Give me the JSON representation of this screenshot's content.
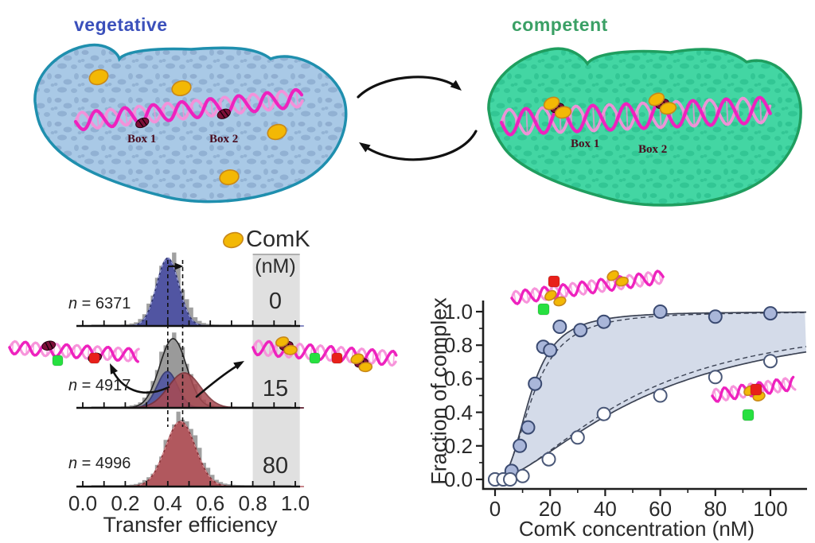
{
  "figure": {
    "top": {
      "left_cell": {
        "label": "vegetative",
        "label_color": "#3b50bb",
        "fill": "#a9c9e6",
        "speckle": "#7e9dc2",
        "border": "#1f8fae",
        "box1": "Box 1",
        "box2": "Box 2"
      },
      "right_cell": {
        "label": "competent",
        "label_color": "#3aa065",
        "fill": "#43d6a3",
        "speckle": "#21b585",
        "border": "#1f9e5f",
        "box1": "Box 1",
        "box2": "Box 2"
      },
      "comk_fill": "#f3b805",
      "comk_stroke": "#c8881a",
      "dna_main": "#ee22be",
      "dna_light": "#f78fd9",
      "dye_green": "#27e040",
      "dye_red": "#e8201a"
    }
  },
  "chart_data": [
    {
      "type": "bar",
      "subtype": "smFRET transfer-efficiency histogram stack",
      "xlabel": "Transfer efficiency",
      "xlim": [
        0,
        1.05
      ],
      "x_tick_labels": [
        "0.0",
        "0.2",
        "0.4",
        "0.6",
        "0.8",
        "1.0"
      ],
      "x_tick_values": [
        0,
        0.2,
        0.4,
        0.6,
        0.8,
        1.0
      ],
      "x_minor_step": 0.1,
      "legend": {
        "label": "ComK",
        "unit": "(nM)"
      },
      "shaded_band_x": [
        0.8,
        1.01
      ],
      "dashed_guides_x": [
        0.4,
        0.47
      ],
      "panels": [
        {
          "n_sym": "n",
          "n_rest": " = 6371",
          "comk_nM": "0",
          "gray_hist": {
            "center": 0.405,
            "sigma": 0.06,
            "amplitude": 1.0
          },
          "peaks": [
            {
              "center": 0.4,
              "sigma": 0.052,
              "amplitude": 0.97,
              "fill": "#4d52a3",
              "stroke": "#2e336f",
              "dash_overlay": "#9ba0dd"
            }
          ]
        },
        {
          "n_sym": "n",
          "n_rest": " = 4917",
          "comk_nM": "15",
          "gray_hist": {
            "center": 0.425,
            "sigma": 0.066,
            "amplitude": 1.0
          },
          "envelope": {
            "center": 0.425,
            "sigma": 0.063,
            "amplitude": 0.99,
            "fill": "#9a9a9a",
            "stroke": "#222222"
          },
          "peaks": [
            {
              "center": 0.398,
              "sigma": 0.048,
              "amplitude": 0.52,
              "fill": "#4d52a3",
              "stroke": "#2e336f"
            },
            {
              "center": 0.478,
              "sigma": 0.075,
              "amplitude": 0.5,
              "fill": "#a84a52",
              "stroke": "#7c2f35"
            }
          ]
        },
        {
          "n_sym": "n",
          "n_rest": " = 4996",
          "comk_nM": "80",
          "gray_hist": {
            "center": 0.465,
            "sigma": 0.075,
            "amplitude": 0.97
          },
          "peaks": [
            {
              "center": 0.46,
              "sigma": 0.07,
              "amplitude": 0.93,
              "fill": "#b2555b",
              "stroke": "#8a3338",
              "dash_overlay": "#dc9298"
            }
          ]
        }
      ]
    },
    {
      "type": "scatter",
      "xlabel": "ComK concentration (nM)",
      "ylabel": "Fraction of complex",
      "xlim": [
        0,
        113
      ],
      "ylim": [
        0,
        1.05
      ],
      "x_tick_labels": [
        "0",
        "20",
        "40",
        "60",
        "80",
        "100"
      ],
      "x_tick_values": [
        0,
        20,
        40,
        60,
        80,
        100
      ],
      "x_minor_values": [
        10,
        30,
        50,
        70,
        90
      ],
      "y_tick_labels": [
        "0.0",
        "0.2",
        "0.4",
        "0.6",
        "0.8",
        "1.0"
      ],
      "y_tick_values": [
        0,
        0.2,
        0.4,
        0.6,
        0.8,
        1.0
      ],
      "y_minor_values": [
        0.1,
        0.3,
        0.5,
        0.7,
        0.9
      ],
      "band_fill": "#c9d2e4",
      "series": [
        {
          "name": "two-box DNA (filled circles)",
          "marker": "filled",
          "fill": "#a9b6d9",
          "stroke": "#3a4a71",
          "points": [
            [
              0,
              0
            ],
            [
              3,
              0
            ],
            [
              4.5,
              0.005
            ],
            [
              6,
              0.05
            ],
            [
              9,
              0.2
            ],
            [
              12,
              0.31
            ],
            [
              14.5,
              0.57
            ],
            [
              17.5,
              0.79
            ],
            [
              20,
              0.77
            ],
            [
              23.5,
              0.91
            ],
            [
              31,
              0.89
            ],
            [
              39.5,
              0.94
            ],
            [
              60,
              1.0
            ],
            [
              80,
              0.97
            ],
            [
              100,
              0.99
            ]
          ],
          "fit": {
            "type": "hill",
            "k": 12.8,
            "h": 2.7
          },
          "fit_dashed": {
            "type": "hill",
            "k": 13.8,
            "h": 2.45
          }
        },
        {
          "name": "single-box DNA (open circles)",
          "marker": "open",
          "fill": "#ffffff",
          "stroke": "#4a5878",
          "points": [
            [
              0,
              0
            ],
            [
              3,
              0
            ],
            [
              5.5,
              0
            ],
            [
              10,
              0.02
            ],
            [
              19.5,
              0.12
            ],
            [
              30,
              0.25
            ],
            [
              39.5,
              0.39
            ],
            [
              60,
              0.5
            ],
            [
              80,
              0.61
            ],
            [
              100,
              0.705
            ]
          ],
          "fit": {
            "type": "hill",
            "k": 55,
            "h": 1.6
          },
          "fit_dashed": {
            "type": "hill",
            "k": 51,
            "h": 1.68
          }
        }
      ]
    }
  ]
}
